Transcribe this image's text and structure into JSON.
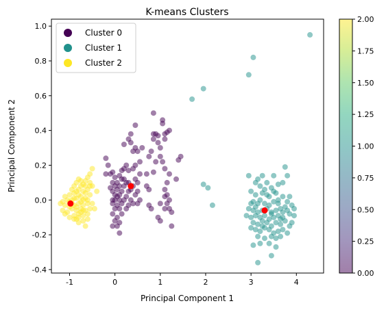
{
  "chart_data": {
    "type": "scatter",
    "title": "K-means Clusters",
    "xlabel": "Principal Component 1",
    "ylabel": "Principal Component 2",
    "xlim": [
      -1.4,
      4.6
    ],
    "ylim": [
      -0.42,
      1.04
    ],
    "xticks": [
      -1,
      0,
      1,
      2,
      3,
      4
    ],
    "yticks": [
      -0.4,
      -0.2,
      0.0,
      0.2,
      0.4,
      0.6,
      0.8,
      1.0
    ],
    "grid": false,
    "legend": {
      "placement": "top-left",
      "entries": [
        {
          "label": "Cluster 0",
          "color": "#440154"
        },
        {
          "label": "Cluster 1",
          "color": "#21918c"
        },
        {
          "label": "Cluster 2",
          "color": "#fde725"
        }
      ]
    },
    "colorbar": {
      "min": 0.0,
      "max": 2.0,
      "ticks": [
        "0.00",
        "0.25",
        "0.50",
        "0.75",
        "1.00",
        "1.25",
        "1.50",
        "1.75",
        "2.00"
      ],
      "colormap": "viridis"
    },
    "point_alpha": 0.5,
    "series": [
      {
        "name": "Cluster 0",
        "color": "#440154",
        "points": [
          [
            0.85,
            0.5
          ],
          [
            1.05,
            0.46
          ],
          [
            1.05,
            0.44
          ],
          [
            0.45,
            0.43
          ],
          [
            0.85,
            0.38
          ],
          [
            0.9,
            0.38
          ],
          [
            0.95,
            0.37
          ],
          [
            1.1,
            0.38
          ],
          [
            1.15,
            0.39
          ],
          [
            1.2,
            0.4
          ],
          [
            1.1,
            0.35
          ],
          [
            0.95,
            0.33
          ],
          [
            1.0,
            0.3
          ],
          [
            0.35,
            0.38
          ],
          [
            0.3,
            0.35
          ],
          [
            0.35,
            0.33
          ],
          [
            0.2,
            0.32
          ],
          [
            0.45,
            0.3
          ],
          [
            0.5,
            0.28
          ],
          [
            0.4,
            0.28
          ],
          [
            0.6,
            0.3
          ],
          [
            0.85,
            0.35
          ],
          [
            0.8,
            0.28
          ],
          [
            1.0,
            0.25
          ],
          [
            1.05,
            0.22
          ],
          [
            0.9,
            0.22
          ],
          [
            1.1,
            0.18
          ],
          [
            1.2,
            0.15
          ],
          [
            1.4,
            0.23
          ],
          [
            1.45,
            0.25
          ],
          [
            1.35,
            0.12
          ],
          [
            0.85,
            0.16
          ],
          [
            0.75,
            0.25
          ],
          [
            0.55,
            0.22
          ],
          [
            0.45,
            0.2
          ],
          [
            0.4,
            0.18
          ],
          [
            0.3,
            0.17
          ],
          [
            0.25,
            0.2
          ],
          [
            0.2,
            0.18
          ],
          [
            0.15,
            0.17
          ],
          [
            -0.05,
            0.16
          ],
          [
            -0.2,
            0.24
          ],
          [
            -0.15,
            0.2
          ],
          [
            -0.1,
            0.15
          ],
          [
            -0.2,
            0.15
          ],
          [
            0.0,
            0.13
          ],
          [
            0.1,
            0.14
          ],
          [
            0.2,
            0.12
          ],
          [
            0.3,
            0.1
          ],
          [
            0.45,
            0.12
          ],
          [
            0.55,
            0.15
          ],
          [
            0.5,
            0.1
          ],
          [
            0.4,
            0.08
          ],
          [
            0.35,
            0.06
          ],
          [
            0.45,
            0.03
          ],
          [
            0.55,
            0.0
          ],
          [
            0.5,
            -0.02
          ],
          [
            0.35,
            0.0
          ],
          [
            0.25,
            0.02
          ],
          [
            0.15,
            0.05
          ],
          [
            0.1,
            0.08
          ],
          [
            0.0,
            0.08
          ],
          [
            -0.05,
            0.05
          ],
          [
            -0.1,
            0.07
          ],
          [
            0.05,
            0.02
          ],
          [
            0.0,
            0.0
          ],
          [
            -0.05,
            -0.02
          ],
          [
            0.05,
            -0.03
          ],
          [
            0.1,
            0.0
          ],
          [
            0.2,
            0.0
          ],
          [
            0.25,
            -0.05
          ],
          [
            0.15,
            -0.08
          ],
          [
            0.05,
            -0.1
          ],
          [
            -0.05,
            -0.08
          ],
          [
            0.0,
            -0.12
          ],
          [
            0.1,
            -0.13
          ],
          [
            0.05,
            -0.15
          ],
          [
            -0.05,
            -0.15
          ],
          [
            0.0,
            -0.05
          ],
          [
            0.1,
            -0.05
          ],
          [
            0.15,
            0.12
          ],
          [
            0.25,
            0.1
          ],
          [
            0.3,
            0.05
          ],
          [
            -0.05,
            0.1
          ],
          [
            0.05,
            0.1
          ],
          [
            0.2,
            0.08
          ],
          [
            0.3,
            -0.03
          ],
          [
            0.4,
            -0.02
          ],
          [
            0.5,
            0.05
          ],
          [
            0.1,
            -0.19
          ],
          [
            0.1,
            0.03
          ],
          [
            0.0,
            0.03
          ],
          [
            -0.05,
            0.0
          ],
          [
            0.05,
            0.06
          ],
          [
            0.15,
            -0.02
          ],
          [
            1.15,
            0.1
          ],
          [
            1.1,
            0.06
          ],
          [
            1.15,
            0.03
          ],
          [
            1.1,
            0.02
          ],
          [
            1.2,
            0.0
          ],
          [
            1.15,
            -0.02
          ],
          [
            1.1,
            -0.05
          ],
          [
            1.2,
            -0.05
          ],
          [
            1.25,
            -0.07
          ],
          [
            1.0,
            -0.02
          ],
          [
            0.95,
            -0.1
          ],
          [
            1.0,
            -0.12
          ],
          [
            1.25,
            -0.15
          ],
          [
            0.8,
            -0.05
          ],
          [
            0.75,
            -0.03
          ],
          [
            0.75,
            0.06
          ],
          [
            0.7,
            0.15
          ],
          [
            0.7,
            0.08
          ]
        ]
      },
      {
        "name": "Cluster 1",
        "color": "#21918c",
        "points": [
          [
            4.3,
            0.95
          ],
          [
            3.05,
            0.82
          ],
          [
            2.95,
            0.72
          ],
          [
            1.95,
            0.64
          ],
          [
            1.7,
            0.58
          ],
          [
            1.95,
            0.09
          ],
          [
            2.05,
            0.07
          ],
          [
            2.15,
            -0.03
          ],
          [
            2.95,
            0.14
          ],
          [
            3.15,
            0.12
          ],
          [
            3.25,
            0.14
          ],
          [
            3.5,
            0.14
          ],
          [
            3.75,
            0.19
          ],
          [
            3.8,
            0.14
          ],
          [
            3.1,
            0.1
          ],
          [
            3.2,
            0.08
          ],
          [
            3.35,
            0.1
          ],
          [
            3.45,
            0.07
          ],
          [
            3.6,
            0.09
          ],
          [
            3.7,
            0.1
          ],
          [
            3.0,
            0.05
          ],
          [
            3.1,
            0.03
          ],
          [
            3.25,
            0.04
          ],
          [
            3.35,
            0.03
          ],
          [
            3.55,
            0.04
          ],
          [
            3.7,
            0.02
          ],
          [
            3.85,
            0.02
          ],
          [
            3.05,
            -0.01
          ],
          [
            3.15,
            -0.02
          ],
          [
            3.3,
            -0.02
          ],
          [
            3.4,
            -0.03
          ],
          [
            3.5,
            -0.01
          ],
          [
            3.6,
            -0.02
          ],
          [
            3.75,
            -0.04
          ],
          [
            3.9,
            -0.03
          ],
          [
            2.95,
            -0.05
          ],
          [
            3.05,
            -0.06
          ],
          [
            3.15,
            -0.07
          ],
          [
            3.25,
            -0.06
          ],
          [
            3.35,
            -0.05
          ],
          [
            3.45,
            -0.07
          ],
          [
            3.55,
            -0.06
          ],
          [
            3.65,
            -0.05
          ],
          [
            3.8,
            -0.06
          ],
          [
            3.95,
            -0.05
          ],
          [
            2.9,
            -0.09
          ],
          [
            3.0,
            -0.1
          ],
          [
            3.1,
            -0.09
          ],
          [
            3.2,
            -0.1
          ],
          [
            3.3,
            -0.09
          ],
          [
            3.4,
            -0.11
          ],
          [
            3.5,
            -0.1
          ],
          [
            3.6,
            -0.09
          ],
          [
            3.7,
            -0.1
          ],
          [
            3.85,
            -0.08
          ],
          [
            3.95,
            -0.09
          ],
          [
            3.05,
            -0.13
          ],
          [
            3.15,
            -0.14
          ],
          [
            3.25,
            -0.12
          ],
          [
            3.35,
            -0.13
          ],
          [
            3.45,
            -0.15
          ],
          [
            3.55,
            -0.13
          ],
          [
            3.65,
            -0.14
          ],
          [
            3.75,
            -0.12
          ],
          [
            3.9,
            -0.13
          ],
          [
            3.1,
            -0.17
          ],
          [
            3.2,
            -0.18
          ],
          [
            3.3,
            -0.16
          ],
          [
            3.4,
            -0.17
          ],
          [
            3.5,
            -0.19
          ],
          [
            3.6,
            -0.18
          ],
          [
            3.7,
            -0.17
          ],
          [
            3.8,
            -0.19
          ],
          [
            3.15,
            -0.21
          ],
          [
            3.3,
            -0.22
          ],
          [
            3.45,
            -0.21
          ],
          [
            3.55,
            -0.22
          ],
          [
            3.65,
            -0.21
          ],
          [
            3.05,
            -0.26
          ],
          [
            3.2,
            -0.25
          ],
          [
            3.4,
            -0.25
          ],
          [
            3.55,
            -0.27
          ],
          [
            3.45,
            -0.32
          ],
          [
            3.15,
            -0.36
          ],
          [
            3.0,
            -0.02
          ],
          [
            3.2,
            0.0
          ],
          [
            3.4,
            0.02
          ],
          [
            3.6,
            0.0
          ],
          [
            3.8,
            -0.01
          ],
          [
            3.3,
            0.06
          ],
          [
            3.5,
            0.05
          ],
          [
            3.1,
            -0.04
          ],
          [
            3.7,
            -0.07
          ],
          [
            3.25,
            -0.15
          ],
          [
            3.45,
            -0.08
          ],
          [
            3.65,
            -0.11
          ],
          [
            3.85,
            -0.15
          ],
          [
            3.0,
            -0.16
          ]
        ]
      },
      {
        "name": "Cluster 2",
        "color": "#fde725",
        "points": [
          [
            -0.5,
            0.18
          ],
          [
            -0.55,
            0.15
          ],
          [
            -0.6,
            0.13
          ],
          [
            -0.55,
            0.1
          ],
          [
            -0.65,
            0.11
          ],
          [
            -0.7,
            0.09
          ],
          [
            -0.75,
            0.11
          ],
          [
            -0.8,
            0.12
          ],
          [
            -0.85,
            0.1
          ],
          [
            -0.9,
            0.08
          ],
          [
            -0.6,
            0.06
          ],
          [
            -0.7,
            0.05
          ],
          [
            -0.8,
            0.06
          ],
          [
            -0.9,
            0.04
          ],
          [
            -1.0,
            0.03
          ],
          [
            -1.1,
            0.02
          ],
          [
            -0.55,
            0.03
          ],
          [
            -0.65,
            0.01
          ],
          [
            -0.75,
            0.02
          ],
          [
            -0.85,
            0.01
          ],
          [
            -0.95,
            0.0
          ],
          [
            -1.05,
            0.0
          ],
          [
            -1.15,
            -0.01
          ],
          [
            -0.6,
            -0.02
          ],
          [
            -0.7,
            -0.03
          ],
          [
            -0.8,
            -0.02
          ],
          [
            -0.9,
            -0.03
          ],
          [
            -1.0,
            -0.04
          ],
          [
            -1.1,
            -0.03
          ],
          [
            -1.2,
            -0.02
          ],
          [
            -0.55,
            -0.05
          ],
          [
            -0.65,
            -0.06
          ],
          [
            -0.75,
            -0.05
          ],
          [
            -0.85,
            -0.06
          ],
          [
            -0.95,
            -0.05
          ],
          [
            -1.05,
            -0.07
          ],
          [
            -1.15,
            -0.06
          ],
          [
            -0.6,
            -0.08
          ],
          [
            -0.7,
            -0.09
          ],
          [
            -0.8,
            -0.08
          ],
          [
            -0.9,
            -0.09
          ],
          [
            -1.0,
            -0.1
          ],
          [
            -1.1,
            -0.08
          ],
          [
            -0.7,
            -0.12
          ],
          [
            -0.8,
            -0.13
          ],
          [
            -0.9,
            -0.11
          ],
          [
            -0.65,
            -0.15
          ],
          [
            -0.45,
            -0.05
          ],
          [
            -0.4,
            0.05
          ],
          [
            -0.5,
            0.08
          ],
          [
            -0.5,
            -0.02
          ],
          [
            -0.75,
            0.08
          ],
          [
            -0.85,
            0.05
          ],
          [
            -0.95,
            0.06
          ],
          [
            -0.65,
            0.04
          ],
          [
            -0.75,
            -0.01
          ],
          [
            -0.85,
            -0.04
          ],
          [
            -0.95,
            -0.02
          ],
          [
            -0.7,
            0.0
          ],
          [
            -0.8,
            0.03
          ],
          [
            -0.6,
            0.0
          ],
          [
            -0.9,
            0.01
          ],
          [
            -1.0,
            -0.01
          ],
          [
            -0.7,
            -0.06
          ],
          [
            -0.8,
            -0.1
          ],
          [
            -0.6,
            -0.11
          ],
          [
            -0.55,
            0.08
          ],
          [
            -0.65,
            0.08
          ],
          [
            -0.75,
            -0.07
          ],
          [
            -0.85,
            -0.11
          ]
        ]
      }
    ],
    "centroids": {
      "color": "#ff0000",
      "points": [
        [
          0.35,
          0.08
        ],
        [
          3.3,
          -0.06
        ],
        [
          -0.98,
          -0.02
        ]
      ]
    }
  }
}
